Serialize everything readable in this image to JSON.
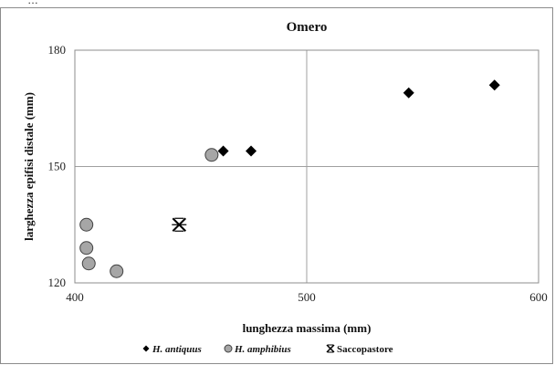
{
  "top_strip_text": "…",
  "chart_data": {
    "type": "scatter",
    "title": "Omero",
    "xlabel": "lunghezza massima (mm)",
    "ylabel": "larghezza epifisi distale (mm)",
    "xlim": [
      400,
      600
    ],
    "ylim": [
      120,
      180
    ],
    "xticks": [
      400,
      500,
      600
    ],
    "yticks": [
      120,
      150,
      180
    ],
    "grid": true,
    "legend_position": "bottom",
    "series": [
      {
        "name": "H. antiquus",
        "italic": true,
        "marker": "diamond",
        "color": "#000000",
        "x": [
          464,
          476,
          544,
          581
        ],
        "y": [
          154,
          154,
          169,
          171
        ]
      },
      {
        "name": "H. amphibius",
        "italic": true,
        "marker": "circle",
        "color": "#a6a6a6",
        "x": [
          405,
          405,
          406,
          418,
          459
        ],
        "y": [
          135,
          129,
          125,
          123,
          153
        ]
      },
      {
        "name": "Saccopastore",
        "italic": false,
        "marker": "asterisk",
        "color": "#000000",
        "x": [
          445
        ],
        "y": [
          135
        ]
      }
    ]
  }
}
